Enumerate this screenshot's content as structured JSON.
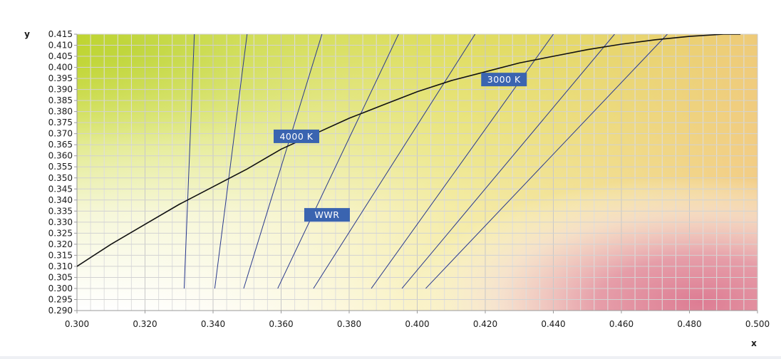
{
  "chart_data": {
    "type": "line",
    "xlabel": "x",
    "ylabel": "y",
    "xlim": [
      0.3,
      0.5
    ],
    "ylim": [
      0.29,
      0.415
    ],
    "x_ticks": [
      "0.300",
      "0.320",
      "0.340",
      "0.360",
      "0.380",
      "0.400",
      "0.420",
      "0.440",
      "0.460",
      "0.480",
      "0.500"
    ],
    "y_ticks": [
      "0.290",
      "0.295",
      "0.300",
      "0.305",
      "0.310",
      "0.315",
      "0.320",
      "0.325",
      "0.330",
      "0.335",
      "0.340",
      "0.345",
      "0.350",
      "0.355",
      "0.360",
      "0.365",
      "0.370",
      "0.375",
      "0.380",
      "0.385",
      "0.390",
      "0.395",
      "0.400",
      "0.405",
      "0.410",
      "0.415"
    ],
    "grid": true,
    "series": [
      {
        "kind": "planckian-locus",
        "color": "#111111",
        "points": [
          [
            0.3,
            0.31
          ],
          [
            0.31,
            0.32
          ],
          [
            0.32,
            0.329
          ],
          [
            0.33,
            0.338
          ],
          [
            0.34,
            0.346
          ],
          [
            0.35,
            0.354
          ],
          [
            0.36,
            0.363
          ],
          [
            0.37,
            0.37
          ],
          [
            0.38,
            0.377
          ],
          [
            0.39,
            0.383
          ],
          [
            0.4,
            0.389
          ],
          [
            0.41,
            0.394
          ],
          [
            0.42,
            0.398
          ],
          [
            0.43,
            0.402
          ],
          [
            0.44,
            0.405
          ],
          [
            0.45,
            0.408
          ],
          [
            0.46,
            0.4105
          ],
          [
            0.47,
            0.4125
          ],
          [
            0.48,
            0.414
          ],
          [
            0.49,
            0.415
          ],
          [
            0.495,
            0.415
          ]
        ]
      }
    ],
    "isotherm_lines": [
      {
        "from": [
          0.3315,
          0.3
        ],
        "to": [
          0.3345,
          0.415
        ]
      },
      {
        "from": [
          0.3405,
          0.3
        ],
        "to": [
          0.35,
          0.415
        ]
      },
      {
        "from": [
          0.349,
          0.3
        ],
        "to": [
          0.372,
          0.415
        ]
      },
      {
        "from": [
          0.359,
          0.3
        ],
        "to": [
          0.3945,
          0.415
        ]
      },
      {
        "from": [
          0.3695,
          0.3
        ],
        "to": [
          0.417,
          0.415
        ]
      },
      {
        "from": [
          0.3865,
          0.3
        ],
        "to": [
          0.44,
          0.415
        ]
      },
      {
        "from": [
          0.3955,
          0.3
        ],
        "to": [
          0.458,
          0.415
        ]
      },
      {
        "from": [
          0.4025,
          0.3
        ],
        "to": [
          0.4735,
          0.415
        ]
      }
    ],
    "line_color": "#2a3a8c",
    "annotations": [
      {
        "text": "3000  K",
        "x": 0.4255,
        "y": 0.3945
      },
      {
        "text": "4000  K",
        "x": 0.3645,
        "y": 0.3688
      },
      {
        "text": "WWR",
        "x": 0.3735,
        "y": 0.3333
      }
    ],
    "annotation_color": "#3a64b0"
  }
}
